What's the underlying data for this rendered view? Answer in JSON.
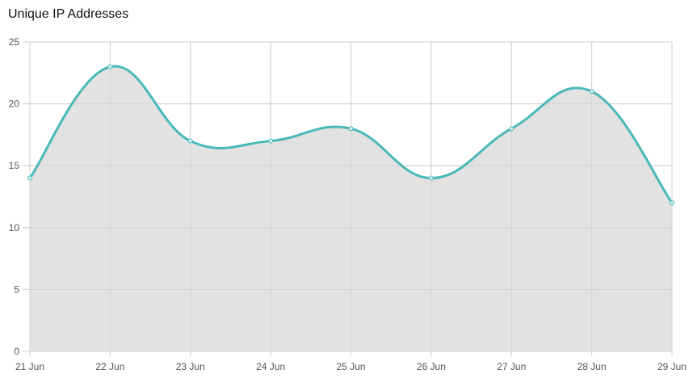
{
  "chart_data": {
    "type": "area",
    "title": "Unique IP Addresses",
    "categories": [
      "21 Jun",
      "22 Jun",
      "23 Jun",
      "24 Jun",
      "25 Jun",
      "26 Jun",
      "27 Jun",
      "28 Jun",
      "29 Jun"
    ],
    "series": [
      {
        "values": [
          14,
          23,
          17,
          17,
          18,
          14,
          18,
          21,
          12
        ]
      }
    ],
    "y_ticks": [
      "0",
      "5",
      "10",
      "15",
      "20",
      "25"
    ],
    "ylim": [
      0,
      25
    ],
    "grid": true,
    "colors": {
      "line": "#4bb8b8",
      "fill": "#e0e0e0",
      "grid": "#d9d9d9"
    }
  }
}
